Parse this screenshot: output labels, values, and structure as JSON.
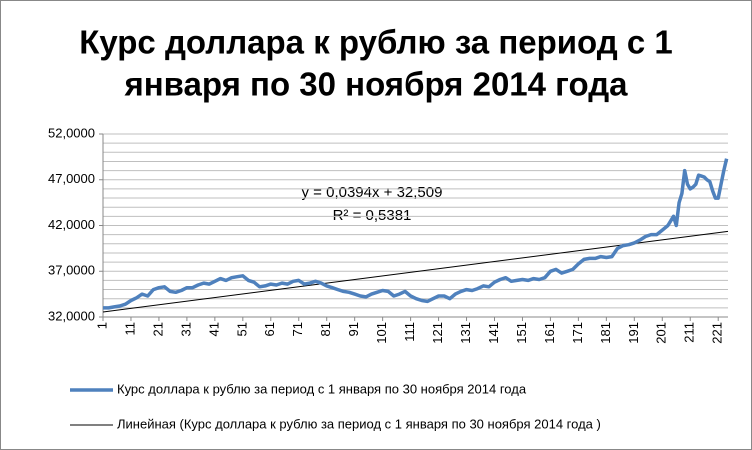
{
  "chart_data": {
    "type": "line",
    "title": [
      "Курс доллара к рублю за период с 1",
      "января по 30 ноября 2014 года"
    ],
    "annotations": [
      "y = 0,0394x + 32,509",
      "R² = 0,5381"
    ],
    "xlim": [
      1,
      224.5
    ],
    "xticks": [
      1,
      11,
      21,
      31,
      41,
      51,
      61,
      71,
      81,
      91,
      101,
      111,
      121,
      131,
      141,
      151,
      161,
      171,
      181,
      191,
      201,
      211,
      221
    ],
    "ylim": [
      32,
      52
    ],
    "yticks": [
      {
        "value": 32,
        "label": "32,0000"
      },
      {
        "value": 37,
        "label": "37,0000"
      },
      {
        "value": 42,
        "label": "42,0000"
      },
      {
        "value": 47,
        "label": "47,0000"
      },
      {
        "value": 52,
        "label": "52,0000"
      }
    ],
    "ygrid": [
      32,
      33,
      34,
      35,
      36,
      37,
      38,
      39,
      40,
      41,
      42,
      43,
      44,
      45,
      46,
      47,
      48,
      49,
      50,
      51,
      52
    ],
    "grid": true,
    "legend": "bottom",
    "series": [
      {
        "name": "Курс доллара к рублю за период с 1 января по 30 ноября 2014 года",
        "color": "#4f81bd",
        "width": 3.5,
        "x": [
          1,
          3,
          5,
          7,
          9,
          11,
          13,
          15,
          17,
          19,
          21,
          23,
          25,
          27,
          29,
          31,
          33,
          35,
          37,
          39,
          41,
          43,
          45,
          47,
          49,
          51,
          53,
          55,
          57,
          59,
          61,
          63,
          65,
          67,
          69,
          71,
          73,
          75,
          77,
          79,
          81,
          83,
          85,
          87,
          89,
          91,
          93,
          95,
          97,
          99,
          101,
          103,
          105,
          107,
          109,
          111,
          113,
          115,
          117,
          119,
          121,
          123,
          125,
          127,
          129,
          131,
          133,
          135,
          137,
          139,
          141,
          143,
          145,
          147,
          149,
          151,
          153,
          155,
          157,
          159,
          161,
          163,
          165,
          167,
          169,
          171,
          173,
          175,
          177,
          179,
          181,
          183,
          185,
          187,
          189,
          191,
          193,
          195,
          197,
          199,
          201,
          203,
          205,
          206,
          207,
          208,
          209,
          210,
          211,
          212,
          213,
          214,
          215,
          216,
          217,
          218,
          219,
          220,
          221,
          222,
          223,
          224
        ],
        "values": [
          33.0,
          33.0,
          33.1,
          33.2,
          33.4,
          33.8,
          34.1,
          34.5,
          34.3,
          35.0,
          35.2,
          35.3,
          34.8,
          34.7,
          34.9,
          35.2,
          35.2,
          35.5,
          35.7,
          35.6,
          35.9,
          36.2,
          36.0,
          36.3,
          36.4,
          36.5,
          36.0,
          35.8,
          35.3,
          35.4,
          35.6,
          35.5,
          35.7,
          35.6,
          35.9,
          36.0,
          35.6,
          35.7,
          35.9,
          35.7,
          35.4,
          35.2,
          35.0,
          34.8,
          34.7,
          34.5,
          34.3,
          34.2,
          34.5,
          34.7,
          34.9,
          34.8,
          34.3,
          34.5,
          34.8,
          34.3,
          34.0,
          33.8,
          33.7,
          34.0,
          34.3,
          34.3,
          34.0,
          34.5,
          34.8,
          35.0,
          34.9,
          35.1,
          35.4,
          35.3,
          35.8,
          36.1,
          36.3,
          35.9,
          36.0,
          36.1,
          36.0,
          36.2,
          36.1,
          36.3,
          37.0,
          37.2,
          36.8,
          37.0,
          37.2,
          37.8,
          38.3,
          38.4,
          38.4,
          38.6,
          38.5,
          38.6,
          39.5,
          39.8,
          39.9,
          40.1,
          40.4,
          40.8,
          41.0,
          41.0,
          41.5,
          42.0,
          43.0,
          42.0,
          44.5,
          45.5,
          48.0,
          46.5,
          46.0,
          46.2,
          46.5,
          47.5,
          47.4,
          47.3,
          47.0,
          46.8,
          45.8,
          45.0,
          45.0,
          46.5,
          48.0,
          49.3
        ]
      },
      {
        "name": "Линейная (Курс доллара к рублю за период с 1 января по 30 ноября 2014 года )",
        "color": "#000000",
        "width": 1,
        "x": [
          1,
          224.5
        ],
        "values": [
          32.55,
          41.35
        ]
      }
    ]
  }
}
